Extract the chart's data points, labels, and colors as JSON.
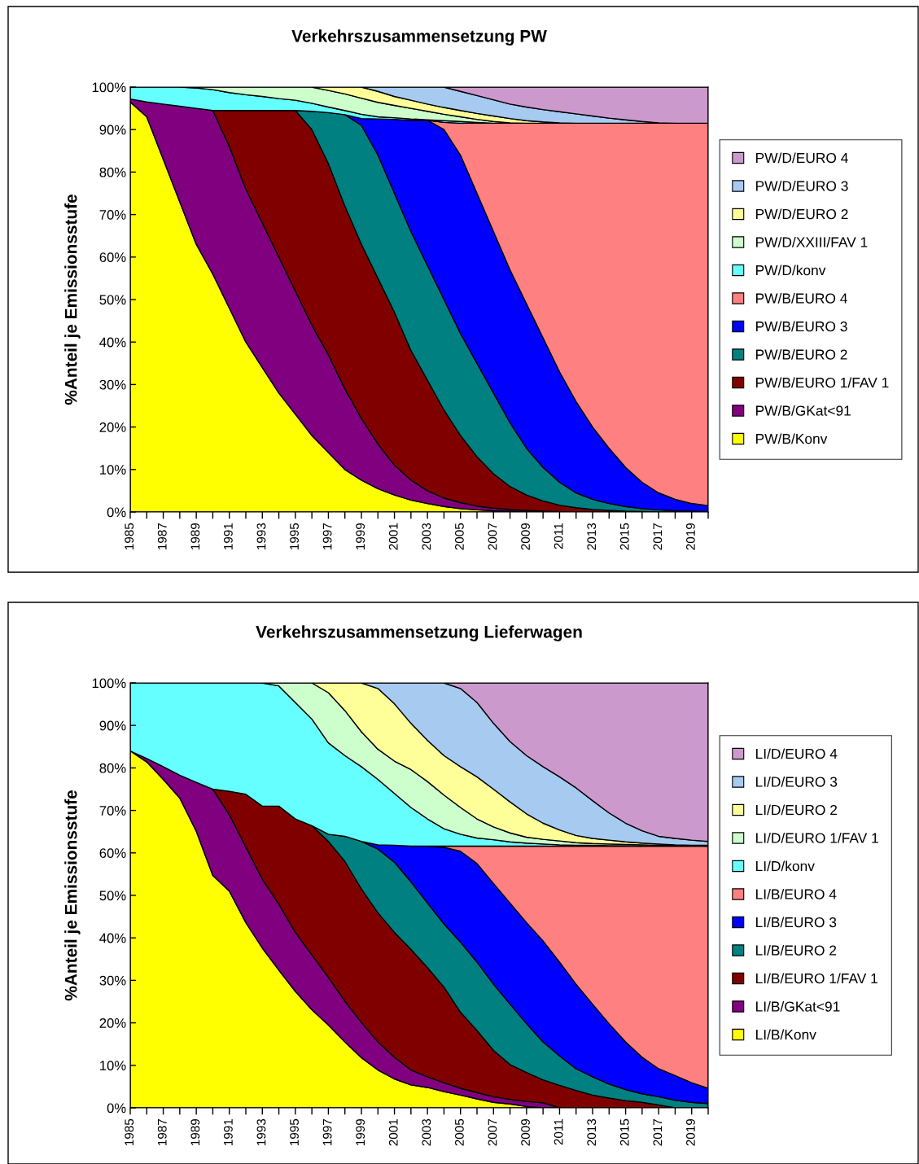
{
  "chart_data": [
    {
      "type": "area",
      "stacked": true,
      "title": "Verkehrszusammensetzung PW",
      "ylabel": "%Anteil je Emissionsstufe",
      "legend": "right",
      "x": [
        1985,
        1986,
        1987,
        1988,
        1989,
        1990,
        1991,
        1992,
        1993,
        1994,
        1995,
        1996,
        1997,
        1998,
        1999,
        2000,
        2001,
        2002,
        2003,
        2004,
        2005,
        2006,
        2007,
        2008,
        2009,
        2010,
        2011,
        2012,
        2013,
        2014,
        2015,
        2016,
        2017,
        2018,
        2019,
        2020
      ],
      "xlim": [
        1985,
        2020
      ],
      "xticks": [
        1985,
        {
          "value": 1986,
          "label": null
        },
        1987,
        {
          "value": 1988,
          "label": null
        },
        1989,
        {
          "value": 1990,
          "label": null
        },
        1991,
        {
          "value": 1992,
          "label": null
        },
        1993,
        {
          "value": 1994,
          "label": null
        },
        1995,
        {
          "value": 1996,
          "label": null
        },
        1997,
        {
          "value": 1998,
          "label": null
        },
        1999,
        {
          "value": 2000,
          "label": null
        },
        2001,
        {
          "value": 2002,
          "label": null
        },
        2003,
        {
          "value": 2004,
          "label": null
        },
        2005,
        {
          "value": 2006,
          "label": null
        },
        2007,
        {
          "value": 2008,
          "label": null
        },
        2009,
        {
          "value": 2010,
          "label": null
        },
        2011,
        {
          "value": 2012,
          "label": null
        },
        2013,
        {
          "value": 2014,
          "label": null
        },
        2015,
        {
          "value": 2016,
          "label": null
        },
        2017,
        {
          "value": 2018,
          "label": null
        },
        2019,
        {
          "value": 2020,
          "label": null
        }
      ],
      "ylim": [
        0,
        100
      ],
      "yticks": [
        {
          "value": 0,
          "label": "0%"
        },
        {
          "value": 10,
          "label": "10%"
        },
        {
          "value": 20,
          "label": "20%"
        },
        {
          "value": 30,
          "label": "30%"
        },
        {
          "value": 40,
          "label": "40%"
        },
        {
          "value": 50,
          "label": "50%"
        },
        {
          "value": 60,
          "label": "60%"
        },
        {
          "value": 70,
          "label": "70%"
        },
        {
          "value": 80,
          "label": "80%"
        },
        {
          "value": 90,
          "label": "90%"
        },
        {
          "value": 100,
          "label": "100%"
        }
      ],
      "series": [
        {
          "name": "PW/B/Konv",
          "color": "#ffff00",
          "values": [
            96.5,
            93,
            83,
            73,
            63,
            56,
            48,
            40,
            34,
            28,
            23,
            18,
            14,
            10,
            7.5,
            5.5,
            4,
            2.8,
            2,
            1.3,
            0.8,
            0.5,
            0.3,
            0.2,
            0.1,
            0,
            null,
            null,
            null,
            null,
            null,
            null,
            null,
            null,
            null,
            null
          ]
        },
        {
          "name": "PW/B/GKat<91",
          "color": "#800080",
          "values": [
            0.7,
            3.5,
            13,
            22.5,
            32,
            38.5,
            38,
            36,
            34,
            32,
            29,
            26,
            23,
            19,
            14.5,
            10.5,
            7,
            4.7,
            3,
            2,
            1.4,
            0.9,
            0.6,
            0.4,
            0.3,
            0.2,
            0.1,
            0,
            null,
            null,
            null,
            null,
            null,
            null,
            null,
            null
          ]
        },
        {
          "name": "PW/B/EURO 1/FAV 1",
          "color": "#800000",
          "values": [
            null,
            null,
            null,
            null,
            null,
            0,
            8.5,
            18.5,
            26.5,
            34.5,
            42.5,
            46,
            45,
            43,
            41,
            39,
            36,
            30.5,
            26,
            20.7,
            15.8,
            11.6,
            8.1,
            5.4,
            3.6,
            2.4,
            1.5,
            1,
            0.6,
            0.4,
            0.2,
            0.1,
            0,
            null,
            null,
            null
          ]
        },
        {
          "name": "PW/B/EURO 2",
          "color": "#008080",
          "values": [
            null,
            null,
            null,
            null,
            null,
            null,
            null,
            null,
            null,
            null,
            0,
            4.3,
            12,
            21.5,
            28,
            29,
            28,
            28,
            27,
            26,
            24,
            22,
            19,
            15,
            11,
            7.9,
            5.4,
            3.5,
            2.4,
            1.6,
            1.1,
            0.7,
            0.5,
            0.3,
            0.2,
            0.1
          ]
        },
        {
          "name": "PW/B/EURO 3",
          "color": "#0000ff",
          "values": [
            null,
            null,
            null,
            null,
            null,
            null,
            null,
            null,
            null,
            null,
            null,
            null,
            null,
            0,
            1.6,
            8.5,
            17.4,
            26.2,
            34.2,
            40,
            42,
            40,
            38,
            36,
            34,
            30.5,
            26,
            21.5,
            17,
            13,
            9.2,
            6.2,
            4,
            2.7,
            1.8,
            1.4
          ]
        },
        {
          "name": "PW/B/EURO 4",
          "color": "#ff8080",
          "values": [
            null,
            null,
            null,
            null,
            null,
            null,
            null,
            null,
            null,
            null,
            null,
            null,
            null,
            null,
            null,
            null,
            null,
            null,
            0,
            1.7,
            7.5,
            16.5,
            25.5,
            34.5,
            42.5,
            50.5,
            58.5,
            65.5,
            71.5,
            76.5,
            81,
            84.5,
            87,
            88.5,
            89.5,
            90
          ]
        },
        {
          "name": "PW/D/konv",
          "color": "#66ffff",
          "values": [
            2.8,
            3.5,
            4,
            4.5,
            4.8,
            4.9,
            4.2,
            3.7,
            3.3,
            2.8,
            2.4,
            1.9,
            1.3,
            1,
            1,
            0.5,
            0.4,
            0.3,
            0.1,
            0.4,
            0.4,
            0.2,
            0,
            null,
            null,
            null,
            null,
            null,
            null,
            null,
            null,
            null,
            null,
            null,
            null,
            null
          ]
        },
        {
          "name": "PW/D/XXIII/FAV 1",
          "color": "#ccffcc",
          "values": [
            null,
            null,
            null,
            0,
            0.2,
            0.6,
            1.3,
            1.8,
            2.2,
            2.7,
            3.1,
            3.8,
            3.9,
            3.9,
            3.8,
            3.4,
            2.9,
            2.5,
            2,
            1.5,
            1.1,
            0.7,
            0.4,
            0.1,
            0,
            null,
            null,
            null,
            null,
            null,
            null,
            null,
            null,
            null,
            null,
            null
          ]
        },
        {
          "name": "PW/D/EURO 2",
          "color": "#ffff99",
          "values": [
            null,
            null,
            null,
            null,
            null,
            null,
            null,
            null,
            null,
            null,
            null,
            0,
            0.8,
            1.6,
            2.6,
            2.6,
            2.1,
            1.9,
            1.7,
            1.6,
            1.5,
            1.4,
            1.3,
            1,
            0.6,
            0.3,
            0.1,
            0,
            null,
            null,
            null,
            null,
            null,
            null,
            null,
            null
          ]
        },
        {
          "name": "PW/D/EURO 3",
          "color": "#a6caf0",
          "values": [
            null,
            null,
            null,
            null,
            null,
            null,
            null,
            null,
            null,
            null,
            null,
            null,
            null,
            null,
            0,
            1,
            2.2,
            3.1,
            4,
            4.8,
            4.5,
            4.2,
            3.8,
            3.4,
            3.2,
            2.9,
            2.6,
            2.2,
            1.7,
            1.2,
            0.8,
            0.4,
            0.1,
            0,
            null,
            null
          ]
        },
        {
          "name": "PW/D/EURO 4",
          "color": "#cc99cc",
          "values": [
            null,
            null,
            null,
            null,
            null,
            null,
            null,
            null,
            null,
            null,
            null,
            null,
            null,
            null,
            null,
            null,
            null,
            null,
            null,
            0,
            1,
            2,
            3,
            4,
            4.7,
            5.3,
            5.8,
            6.3,
            6.8,
            7.3,
            7.7,
            8.1,
            8.4,
            8.5,
            8.5,
            8.5
          ]
        }
      ]
    },
    {
      "type": "area",
      "stacked": true,
      "title": "Verkehrszusammensetzung Lieferwagen",
      "ylabel": "%Anteil je Emissionsstufe",
      "legend": "right",
      "x": [
        1985,
        1986,
        1987,
        1988,
        1989,
        1990,
        1991,
        1992,
        1993,
        1994,
        1995,
        1996,
        1997,
        1998,
        1999,
        2000,
        2001,
        2002,
        2003,
        2004,
        2005,
        2006,
        2007,
        2008,
        2009,
        2010,
        2011,
        2012,
        2013,
        2014,
        2015,
        2016,
        2017,
        2018,
        2019,
        2020
      ],
      "xlim": [
        1985,
        2020
      ],
      "xticks": [
        1985,
        {
          "value": 1986,
          "label": null
        },
        1987,
        {
          "value": 1988,
          "label": null
        },
        1989,
        {
          "value": 1990,
          "label": null
        },
        1991,
        {
          "value": 1992,
          "label": null
        },
        1993,
        {
          "value": 1994,
          "label": null
        },
        1995,
        {
          "value": 1996,
          "label": null
        },
        1997,
        {
          "value": 1998,
          "label": null
        },
        1999,
        {
          "value": 2000,
          "label": null
        },
        2001,
        {
          "value": 2002,
          "label": null
        },
        2003,
        {
          "value": 2004,
          "label": null
        },
        2005,
        {
          "value": 2006,
          "label": null
        },
        2007,
        {
          "value": 2008,
          "label": null
        },
        2009,
        {
          "value": 2010,
          "label": null
        },
        2011,
        {
          "value": 2012,
          "label": null
        },
        2013,
        {
          "value": 2014,
          "label": null
        },
        2015,
        {
          "value": 2016,
          "label": null
        },
        2017,
        {
          "value": 2018,
          "label": null
        },
        2019,
        {
          "value": 2020,
          "label": null
        }
      ],
      "ylim": [
        0,
        100
      ],
      "yticks": [
        {
          "value": 0,
          "label": "0%"
        },
        {
          "value": 10,
          "label": "10%"
        },
        {
          "value": 20,
          "label": "20%"
        },
        {
          "value": 30,
          "label": "30%"
        },
        {
          "value": 40,
          "label": "40%"
        },
        {
          "value": 50,
          "label": "50%"
        },
        {
          "value": 60,
          "label": "60%"
        },
        {
          "value": 70,
          "label": "70%"
        },
        {
          "value": 80,
          "label": "80%"
        },
        {
          "value": 90,
          "label": "90%"
        },
        {
          "value": 100,
          "label": "100%"
        }
      ],
      "series": [
        {
          "name": "LI/B/Konv",
          "color": "#ffff00",
          "values": [
            84,
            81.4,
            77.3,
            72.9,
            65.1,
            54.7,
            51,
            43.6,
            37.6,
            32.4,
            27.4,
            23.1,
            19.5,
            15.5,
            11.8,
            8.9,
            6.8,
            5.4,
            4.8,
            3.8,
            3,
            2.1,
            1.3,
            0.9,
            0.3,
            0,
            null,
            null,
            null,
            null,
            null,
            null,
            null,
            null,
            null,
            null
          ]
        },
        {
          "name": "LI/B/GKat<91",
          "color": "#800080",
          "values": [
            0,
            0.8,
            3,
            5.4,
            11.5,
            20.3,
            18,
            17.8,
            16.2,
            15.5,
            13.9,
            12.9,
            11.2,
            9.6,
            8.3,
            6.6,
            5.1,
            3.5,
            2.5,
            2.1,
            1.6,
            1.5,
            1.3,
            1.1,
            1.2,
            1.2,
            0,
            null,
            null,
            null,
            null,
            null,
            null,
            null,
            null,
            null
          ]
        },
        {
          "name": "LI/B/EURO 1/FAV 1",
          "color": "#800000",
          "values": [
            null,
            null,
            null,
            null,
            null,
            0,
            5.5,
            12.4,
            17.2,
            23.1,
            26.7,
            30.4,
            32,
            32.9,
            31.4,
            30.4,
            29.4,
            28.4,
            25.7,
            22.5,
            17.9,
            14.6,
            10.9,
            8.2,
            6.8,
            5.4,
            5.3,
            4.1,
            3,
            2.3,
            1.7,
            1.3,
            0.7,
            0,
            null,
            null
          ]
        },
        {
          "name": "LI/B/EURO 2",
          "color": "#008080",
          "values": [
            null,
            null,
            null,
            null,
            null,
            null,
            null,
            null,
            null,
            null,
            null,
            0,
            1.7,
            5.9,
            11.2,
            15,
            16.5,
            15.9,
            15.2,
            14.9,
            16.5,
            16.1,
            15.6,
            14.2,
            11.5,
            8.9,
            6.9,
            5.1,
            4.3,
            3.3,
            2.6,
            2,
            1.9,
            1.8,
            1.3,
            1
          ]
        },
        {
          "name": "LI/B/EURO 3",
          "color": "#0000ff",
          "values": [
            null,
            null,
            null,
            null,
            null,
            null,
            null,
            null,
            null,
            null,
            null,
            null,
            null,
            null,
            0,
            1,
            4,
            8.4,
            13.4,
            18,
            21.4,
            23.2,
            23.7,
            23.8,
            23.8,
            23.8,
            22.1,
            19.9,
            17.1,
            14.2,
            11.2,
            8.6,
            6.6,
            5.8,
            4.6,
            3.6
          ]
        },
        {
          "name": "LI/B/EURO 4",
          "color": "#ff8080",
          "values": [
            null,
            null,
            null,
            null,
            null,
            null,
            null,
            null,
            null,
            null,
            null,
            null,
            null,
            null,
            null,
            null,
            null,
            null,
            0,
            0.3,
            1.2,
            4.1,
            8.8,
            13.4,
            18,
            22.3,
            27.3,
            32.5,
            37.2,
            41.8,
            46.1,
            49.7,
            52.4,
            54,
            55.7,
            57
          ]
        },
        {
          "name": "LI/D/konv",
          "color": "#66ffff",
          "values": [
            16,
            17.8,
            19.7,
            21.7,
            23.4,
            25,
            25.5,
            26.2,
            29,
            28.3,
            27.4,
            25.1,
            21.5,
            19,
            17.6,
            15.4,
            12.2,
            9.1,
            6.4,
            4.1,
            2.8,
            1.9,
            1.5,
            1,
            0.7,
            0.5,
            0.3,
            0.2,
            0.2,
            0.1,
            0.1,
            0,
            null,
            null,
            null,
            null
          ]
        },
        {
          "name": "LI/D/EURO 1/FAV 1",
          "color": "#ccffcc",
          "values": [
            null,
            null,
            null,
            null,
            null,
            null,
            null,
            null,
            0,
            0.7,
            4.6,
            8.5,
            11.8,
            10.6,
            8.2,
            7.1,
            7.6,
            8.9,
            8.8,
            7.9,
            6.3,
            4.5,
            3,
            2.1,
            1.4,
            1.1,
            0.9,
            0.6,
            0.4,
            0.4,
            0.3,
            0.3,
            0.2,
            0.1,
            0.1,
            0
          ]
        },
        {
          "name": "LI/D/EURO 2",
          "color": "#ffff99",
          "values": [
            null,
            null,
            null,
            null,
            null,
            null,
            null,
            null,
            null,
            null,
            null,
            0,
            2.3,
            6.5,
            11.5,
            14.3,
            13.5,
            10.9,
            9.7,
            9.3,
            9.6,
            9.9,
            8.9,
            7.3,
            5.5,
            3.8,
            2.6,
            1.7,
            1.2,
            0.9,
            0.6,
            0.4,
            0.3,
            0.2,
            0.1,
            0.2
          ]
        },
        {
          "name": "LI/D/EURO 3",
          "color": "#a6caf0",
          "values": [
            null,
            null,
            null,
            null,
            null,
            null,
            null,
            null,
            null,
            null,
            null,
            null,
            null,
            null,
            0,
            1.3,
            4.9,
            9.5,
            13.5,
            17.1,
            18.4,
            17.5,
            15.5,
            14.2,
            13.7,
            13.3,
            12.5,
            11.2,
            8.9,
            6.4,
            4.4,
            2.9,
            1.8,
            1.5,
            1.2,
            0.9
          ]
        },
        {
          "name": "LI/D/EURO 4",
          "color": "#cc99cc",
          "values": [
            null,
            null,
            null,
            null,
            null,
            null,
            null,
            null,
            null,
            null,
            null,
            null,
            null,
            null,
            null,
            null,
            null,
            null,
            null,
            0,
            1.3,
            4.6,
            9.5,
            13.8,
            17.1,
            19.7,
            22.1,
            24.7,
            27.7,
            30.6,
            33,
            34.8,
            36.1,
            36.6,
            37,
            37.3
          ]
        }
      ]
    }
  ]
}
